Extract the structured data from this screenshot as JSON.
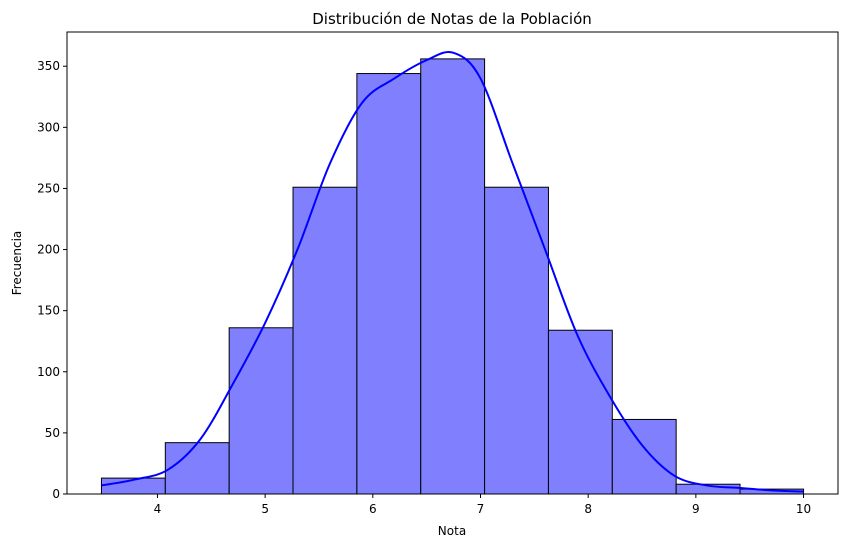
{
  "chart_data": {
    "type": "bar",
    "subtype": "histogram_with_kde",
    "title": "Distribución de Notas de la Población",
    "xlabel": "Nota",
    "ylabel": "Frecuencia",
    "xlim": [
      3.16,
      10.32
    ],
    "ylim": [
      0,
      378
    ],
    "xticks": [
      4,
      5,
      6,
      7,
      8,
      9,
      10
    ],
    "yticks": [
      0,
      50,
      100,
      150,
      200,
      250,
      300,
      350
    ],
    "bin_edges": [
      3.48,
      4.073,
      4.666,
      5.259,
      5.852,
      6.445,
      7.038,
      7.631,
      8.224,
      8.817,
      9.41,
      10.0
    ],
    "counts": [
      13,
      42,
      136,
      251,
      344,
      356,
      251,
      134,
      61,
      8,
      4
    ],
    "bar_color": "#8080ff",
    "edge_color": "#000000",
    "kde": {
      "color": "#0000ff",
      "x": [
        3.48,
        3.8,
        4.1,
        4.4,
        4.7,
        5.0,
        5.3,
        5.6,
        5.9,
        6.2,
        6.5,
        6.75,
        7.0,
        7.3,
        7.6,
        7.9,
        8.2,
        8.5,
        8.8,
        9.1,
        9.4,
        9.7,
        10.0
      ],
      "y": [
        7,
        12,
        20,
        45,
        90,
        140,
        200,
        270,
        320,
        340,
        355,
        361,
        340,
        270,
        200,
        130,
        80,
        40,
        15,
        7,
        5,
        3,
        2
      ]
    }
  }
}
